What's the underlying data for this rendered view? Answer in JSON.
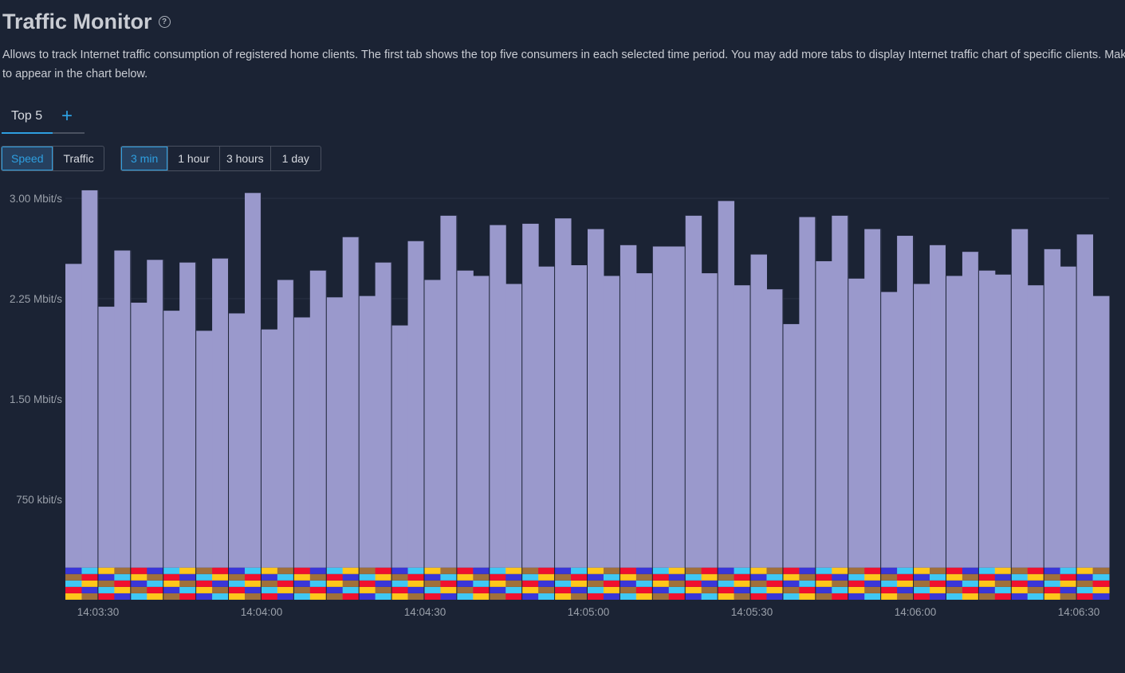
{
  "header": {
    "title": "Traffic Monitor",
    "help_icon": "help-circle-icon",
    "description_line1": "Allows to track Internet traffic consumption of registered home clients. The first tab shows the top five consumers in each selected time period. You may add more tabs to display Internet traffic chart of specific clients. Make sure",
    "description_line2": "to appear in the chart below."
  },
  "tabs": [
    {
      "label": "Top 5",
      "active": true
    }
  ],
  "add_tab_icon": "plus-icon",
  "mode_toggle": [
    {
      "label": "Speed",
      "active": true
    },
    {
      "label": "Traffic",
      "active": false
    }
  ],
  "period_toggle": [
    {
      "label": "3 min",
      "active": true
    },
    {
      "label": "1 hour",
      "active": false
    },
    {
      "label": "3 hours",
      "active": false
    },
    {
      "label": "1 day",
      "active": false
    }
  ],
  "colors": {
    "accent": "#2e9fe0",
    "background": "#1b2334"
  },
  "chart_data": {
    "type": "bar",
    "stacked": true,
    "ylim": [
      0,
      3.0
    ],
    "unit": "Mbit/s",
    "y_ticks": [
      {
        "value": 0.75,
        "label": "750 kbit/s"
      },
      {
        "value": 1.5,
        "label": "1.50 Mbit/s"
      },
      {
        "value": 2.25,
        "label": "2.25 Mbit/s"
      },
      {
        "value": 3.0,
        "label": "3.00 Mbit/s"
      }
    ],
    "x_ticks": [
      "14:03:30",
      "14:04:00",
      "14:04:30",
      "14:05:00",
      "14:05:30",
      "14:06:00",
      "14:06:30"
    ],
    "grid": true,
    "series_colors": [
      "#9a99cc",
      "#3fc8f4",
      "#f0102e",
      "#ffc61a",
      "#3a36d8",
      "#a0703a"
    ],
    "small_series_value": 0.048,
    "totals": [
      2.51,
      3.06,
      2.19,
      2.61,
      2.22,
      2.54,
      2.16,
      2.52,
      2.01,
      2.55,
      2.14,
      3.04,
      2.02,
      2.39,
      2.11,
      2.46,
      2.26,
      2.71,
      2.27,
      2.52,
      2.05,
      2.68,
      2.39,
      2.87,
      2.46,
      2.42,
      2.8,
      2.36,
      2.81,
      2.49,
      2.85,
      2.5,
      2.77,
      2.42,
      2.65,
      2.44,
      2.64,
      2.64,
      2.87,
      2.44,
      2.98,
      2.35,
      2.58,
      2.32,
      2.06,
      2.86,
      2.53,
      2.87,
      2.4,
      2.77,
      2.3,
      2.72,
      2.36,
      2.65,
      2.42,
      2.6,
      2.46,
      2.43,
      2.77,
      2.35,
      2.62,
      2.49,
      2.73,
      2.27
    ]
  }
}
